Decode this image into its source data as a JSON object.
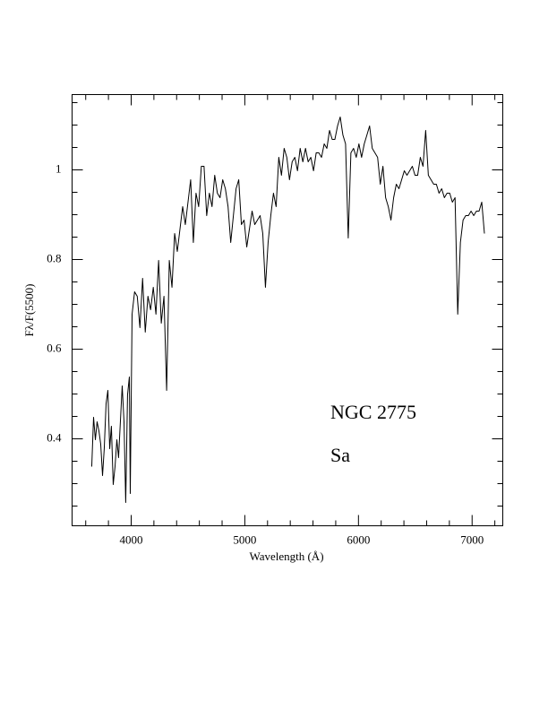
{
  "chart_data": {
    "type": "line",
    "annotations": [
      "NGC 2775",
      "Sa"
    ],
    "xlabel": "Wavelength (Å)",
    "ylabel": "Fλ/F(5500)",
    "xlim": [
      3480,
      7270
    ],
    "ylim": [
      0.206,
      1.168
    ],
    "xticks": [
      4000,
      5000,
      6000,
      7000
    ],
    "yticks": [
      0.4,
      0.6,
      0.8,
      1
    ],
    "xminorticks": [
      3600,
      3800,
      4200,
      4400,
      4600,
      4800,
      5200,
      5400,
      5600,
      5800,
      6200,
      6400,
      6600,
      6800,
      7200
    ],
    "yminorticks": [
      0.25,
      0.3,
      0.35,
      0.45,
      0.5,
      0.55,
      0.65,
      0.7,
      0.75,
      0.85,
      0.9,
      0.95,
      1.05,
      1.1,
      1.15
    ],
    "color": "#000000",
    "x": [
      3653,
      3669,
      3685,
      3700,
      3716,
      3732,
      3748,
      3763,
      3779,
      3795,
      3811,
      3826,
      3842,
      3858,
      3874,
      3889,
      3905,
      3921,
      3937,
      3952,
      3968,
      3984,
      3992,
      4008,
      4030,
      4053.5,
      4077,
      4100.5,
      4124,
      4147.5,
      4171,
      4194.5,
      4218,
      4241.5,
      4265,
      4288.5,
      4312,
      4335.5,
      4359,
      4382.5,
      4406,
      4429.5,
      4453,
      4476.5,
      4500,
      4523.5,
      4547,
      4570.5,
      4594,
      4617.5,
      4641,
      4664.5,
      4688,
      4711.5,
      4735,
      4758.5,
      4782,
      4805.5,
      4829,
      4852.5,
      4876,
      4899.5,
      4923,
      4946.5,
      4970,
      4993.5,
      5017,
      5040.5,
      5064,
      5087.5,
      5111,
      5134.5,
      5158,
      5181.5,
      5205,
      5228.5,
      5252,
      5275.5,
      5299,
      5322.5,
      5346,
      5369.5,
      5393,
      5416.5,
      5440,
      5463.5,
      5487,
      5510.5,
      5534,
      5557.5,
      5581,
      5604.5,
      5628,
      5651.5,
      5675,
      5698.5,
      5722,
      5745.5,
      5769,
      5792.5,
      5816,
      5839.5,
      5863,
      5886.5,
      5910,
      5933.5,
      5957,
      5980.5,
      6004,
      6027.5,
      6051,
      6074.5,
      6098,
      6121.5,
      6145,
      6168.5,
      6192,
      6215.5,
      6239,
      6262.5,
      6286,
      6309.5,
      6333,
      6356.5,
      6380,
      6403.5,
      6427,
      6450.5,
      6474,
      6497.5,
      6521,
      6544.5,
      6568,
      6591.5,
      6615,
      6638.5,
      6662,
      6685.5,
      6709,
      6732.5,
      6756,
      6779.5,
      6803,
      6826.5,
      6850,
      6873.5,
      6897,
      6920.5,
      6944,
      6967.5,
      6991,
      7014.5,
      7038,
      7061.5,
      7085,
      7108.5
    ],
    "values": [
      0.338,
      0.448,
      0.398,
      0.438,
      0.418,
      0.388,
      0.318,
      0.378,
      0.478,
      0.508,
      0.378,
      0.428,
      0.298,
      0.338,
      0.398,
      0.358,
      0.438,
      0.518,
      0.438,
      0.258,
      0.498,
      0.538,
      0.278,
      0.678,
      0.728,
      0.718,
      0.648,
      0.758,
      0.638,
      0.718,
      0.688,
      0.738,
      0.678,
      0.798,
      0.658,
      0.718,
      0.508,
      0.798,
      0.738,
      0.858,
      0.818,
      0.868,
      0.918,
      0.878,
      0.928,
      0.978,
      0.838,
      0.948,
      0.918,
      1.008,
      1.008,
      0.898,
      0.948,
      0.918,
      0.988,
      0.948,
      0.938,
      0.978,
      0.958,
      0.918,
      0.838,
      0.898,
      0.958,
      0.978,
      0.878,
      0.888,
      0.828,
      0.868,
      0.908,
      0.878,
      0.888,
      0.898,
      0.858,
      0.738,
      0.838,
      0.898,
      0.948,
      0.918,
      1.028,
      0.988,
      1.048,
      1.028,
      0.978,
      1.018,
      1.028,
      0.998,
      1.048,
      1.018,
      1.048,
      1.018,
      1.028,
      0.998,
      1.038,
      1.038,
      1.028,
      1.058,
      1.048,
      1.088,
      1.068,
      1.068,
      1.098,
      1.118,
      1.078,
      1.058,
      0.848,
      1.038,
      1.048,
      1.028,
      1.058,
      1.028,
      1.058,
      1.078,
      1.098,
      1.048,
      1.038,
      1.028,
      0.968,
      1.008,
      0.938,
      0.918,
      0.888,
      0.938,
      0.968,
      0.958,
      0.978,
      0.998,
      0.988,
      0.998,
      1.008,
      0.988,
      0.988,
      1.028,
      1.008,
      1.088,
      0.988,
      0.978,
      0.968,
      0.968,
      0.948,
      0.958,
      0.938,
      0.948,
      0.948,
      0.928,
      0.938,
      0.678,
      0.838,
      0.888,
      0.898,
      0.898,
      0.908,
      0.898,
      0.908,
      0.908,
      0.928,
      0.858
    ]
  }
}
